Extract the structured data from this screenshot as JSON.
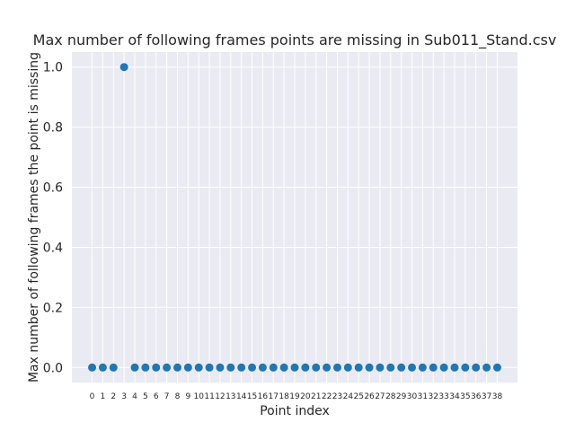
{
  "chart_data": {
    "type": "scatter",
    "title": "Max number of following frames points are missing in Sub011_Stand.csv",
    "xlabel": "Point index",
    "ylabel": "Max number of following frames the point is missing",
    "x": [
      0,
      1,
      2,
      3,
      4,
      5,
      6,
      7,
      8,
      9,
      10,
      11,
      12,
      13,
      14,
      15,
      16,
      17,
      18,
      19,
      20,
      21,
      22,
      23,
      24,
      25,
      26,
      27,
      28,
      29,
      30,
      31,
      32,
      33,
      34,
      35,
      36,
      37,
      38
    ],
    "y": [
      0,
      0,
      0,
      1,
      0,
      0,
      0,
      0,
      0,
      0,
      0,
      0,
      0,
      0,
      0,
      0,
      0,
      0,
      0,
      0,
      0,
      0,
      0,
      0,
      0,
      0,
      0,
      0,
      0,
      0,
      0,
      0,
      0,
      0,
      0,
      0,
      0,
      0,
      0
    ],
    "xticks": [
      "0",
      "1",
      "2",
      "3",
      "4",
      "5",
      "6",
      "7",
      "8",
      "9",
      "10",
      "11",
      "12",
      "13",
      "14",
      "15",
      "16",
      "17",
      "18",
      "19",
      "20",
      "21",
      "22",
      "23",
      "24",
      "25",
      "26",
      "27",
      "28",
      "29",
      "30",
      "31",
      "32",
      "33",
      "34",
      "35",
      "36",
      "37",
      "38"
    ],
    "yticks": [
      "0.0",
      "0.2",
      "0.4",
      "0.6",
      "0.8",
      "1.0"
    ],
    "ytick_values": [
      0,
      0.2,
      0.4,
      0.6,
      0.8,
      1.0
    ],
    "xlim": [
      -1.9,
      39.9
    ],
    "ylim": [
      -0.05,
      1.05
    ],
    "grid": true,
    "colors": {
      "point": "#1f77b4",
      "background": "#eaeaf2",
      "grid": "#ffffff"
    }
  }
}
